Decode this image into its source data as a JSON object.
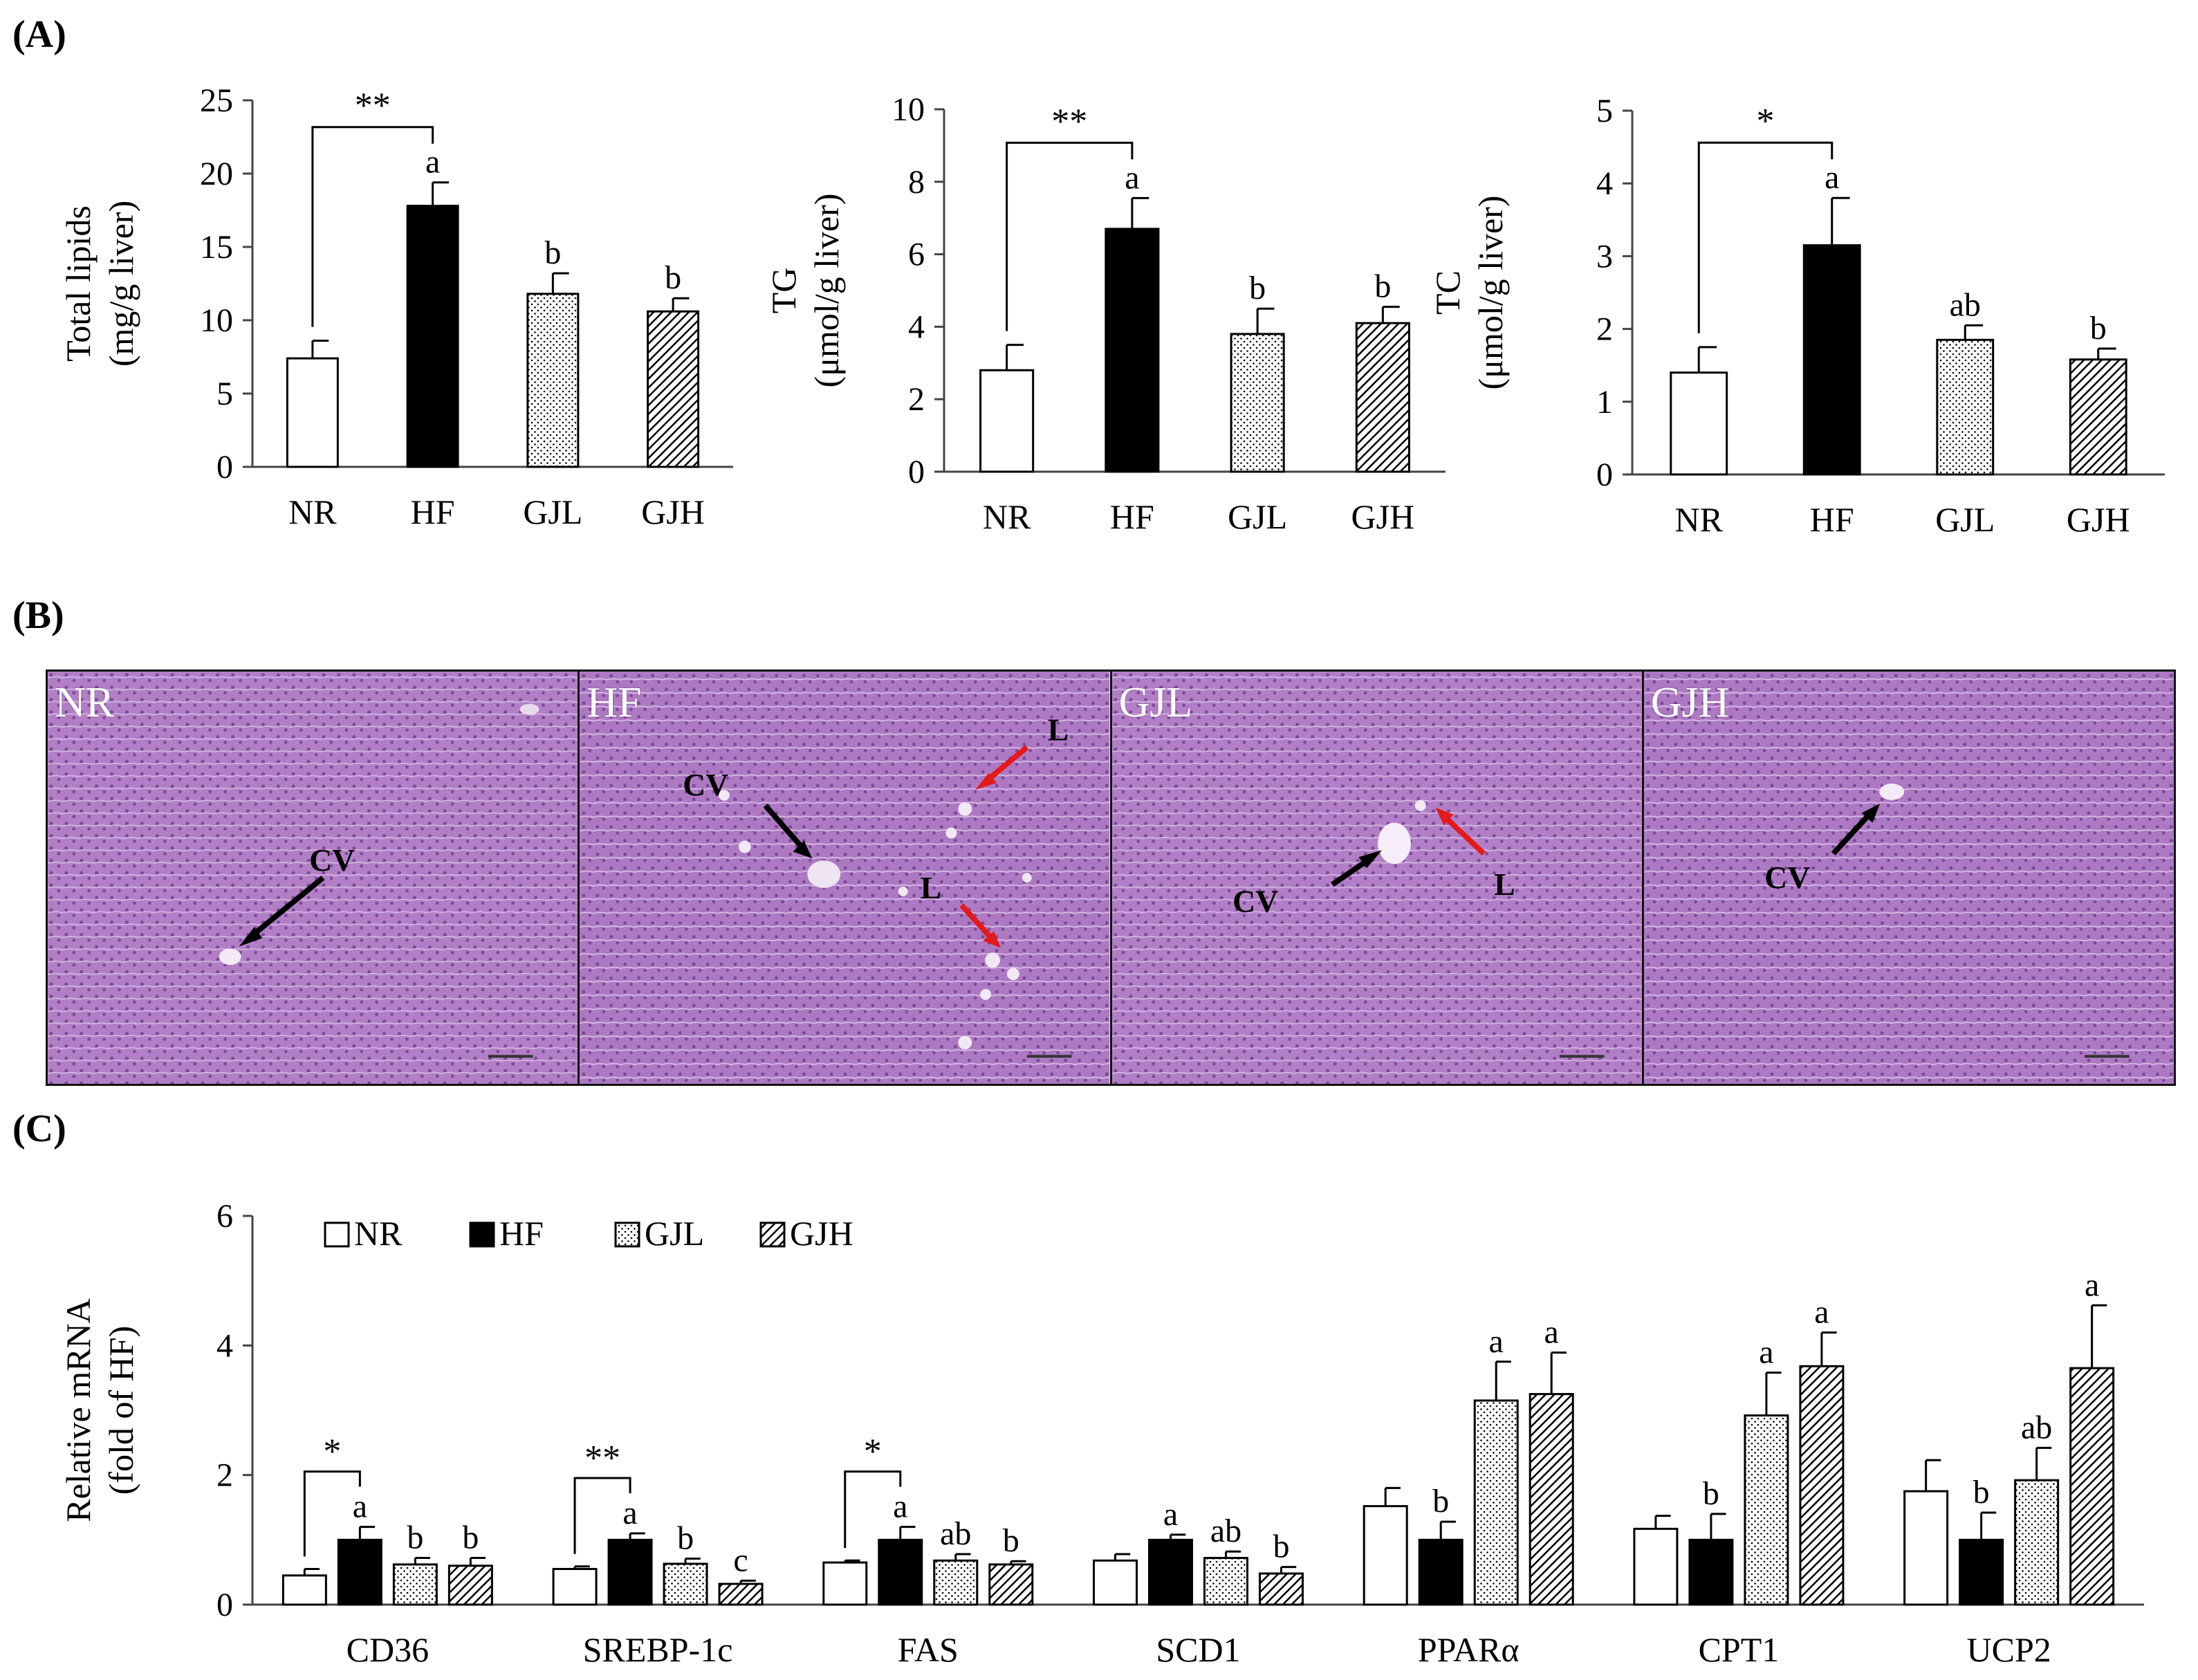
{
  "panels": {
    "a": "(A)",
    "b": "(B)",
    "c": "(C)"
  },
  "colors": {
    "axis": "#444444",
    "bar_stroke": "#000000",
    "nr_fill": "#ffffff",
    "hf_fill": "#000000",
    "tissue": "#b07cc6",
    "tissue_dark": "#8e5aa8",
    "red_arrow": "#e31a1c",
    "black_arrow": "#000000"
  },
  "chart_data": [
    {
      "type": "bar",
      "ylabel_lines": [
        "Total lipids",
        "(mg/g liver)"
      ],
      "categories": [
        "NR",
        "HF",
        "GJL",
        "GJH"
      ],
      "values": [
        7.4,
        17.8,
        11.8,
        10.6
      ],
      "errors": [
        1.2,
        1.6,
        1.4,
        0.9
      ],
      "labels": [
        "",
        "a",
        "b",
        "b"
      ],
      "ylim": [
        0,
        25
      ],
      "yticks": [
        0,
        5,
        10,
        15,
        20,
        25
      ],
      "bracket": {
        "from": 0,
        "to": 1,
        "text": "**"
      }
    },
    {
      "type": "bar",
      "ylabel_lines": [
        "TG",
        "(μmol/g liver)"
      ],
      "categories": [
        "NR",
        "HF",
        "GJL",
        "GJH"
      ],
      "values": [
        2.8,
        6.7,
        3.8,
        4.1
      ],
      "errors": [
        0.7,
        0.85,
        0.7,
        0.45
      ],
      "labels": [
        "",
        "a",
        "b",
        "b"
      ],
      "ylim": [
        0,
        10
      ],
      "yticks": [
        0,
        2,
        4,
        6,
        8,
        10
      ],
      "bracket": {
        "from": 0,
        "to": 1,
        "text": "**"
      }
    },
    {
      "type": "bar",
      "ylabel_lines": [
        "TC",
        "(μmol/g liver)"
      ],
      "categories": [
        "NR",
        "HF",
        "GJL",
        "GJH"
      ],
      "values": [
        1.4,
        3.15,
        1.85,
        1.58
      ],
      "errors": [
        0.35,
        0.65,
        0.2,
        0.15
      ],
      "labels": [
        "",
        "a",
        "ab",
        "b"
      ],
      "ylim": [
        0,
        5
      ],
      "yticks": [
        0,
        1,
        2,
        3,
        4,
        5
      ],
      "bracket": {
        "from": 0,
        "to": 1,
        "text": "*"
      }
    },
    {
      "type": "bar",
      "ylabel_lines": [
        "Relative mRNA",
        "(fold of HF)"
      ],
      "categories": [
        "CD36",
        "SREBP-1c",
        "FAS",
        "SCD1",
        "PPARα",
        "CPT1",
        "UCP2"
      ],
      "series": [
        {
          "name": "NR",
          "values": [
            0.45,
            0.55,
            0.65,
            0.68,
            1.52,
            1.17,
            1.75
          ],
          "errors": [
            0.1,
            0.04,
            0.03,
            0.1,
            0.28,
            0.2,
            0.48
          ],
          "labels": [
            "",
            "",
            "",
            "",
            "",
            "",
            ""
          ]
        },
        {
          "name": "HF",
          "values": [
            1.0,
            1.0,
            1.0,
            1.0,
            1.0,
            1.0,
            1.0
          ],
          "errors": [
            0.2,
            0.1,
            0.2,
            0.08,
            0.28,
            0.4,
            0.42
          ],
          "labels": [
            "a",
            "a",
            "a",
            "a",
            "b",
            "b",
            "b"
          ]
        },
        {
          "name": "GJL",
          "values": [
            0.62,
            0.63,
            0.68,
            0.72,
            3.15,
            2.92,
            1.92
          ],
          "errors": [
            0.1,
            0.08,
            0.1,
            0.1,
            0.6,
            0.66,
            0.5
          ],
          "labels": [
            "b",
            "b",
            "ab",
            "ab",
            "a",
            "a",
            "ab"
          ]
        },
        {
          "name": "GJH",
          "values": [
            0.6,
            0.32,
            0.62,
            0.48,
            3.25,
            3.68,
            3.65
          ],
          "errors": [
            0.12,
            0.05,
            0.05,
            0.1,
            0.64,
            0.52,
            0.97
          ],
          "labels": [
            "b",
            "c",
            "b",
            "b",
            "a",
            "a",
            "a"
          ]
        }
      ],
      "ylim": [
        0,
        6
      ],
      "yticks": [
        0,
        2,
        4,
        6
      ],
      "brackets": [
        {
          "group": 0,
          "text": "*"
        },
        {
          "group": 1,
          "text": "**"
        },
        {
          "group": 2,
          "text": "*"
        }
      ],
      "legend": "top-left"
    }
  ],
  "histology": [
    {
      "name": "NR",
      "cv_label": "CV"
    },
    {
      "name": "HF",
      "cv_label": "CV",
      "lipid_label": "L"
    },
    {
      "name": "GJL",
      "cv_label": "CV",
      "lipid_label": "L"
    },
    {
      "name": "GJH",
      "cv_label": "CV"
    }
  ]
}
